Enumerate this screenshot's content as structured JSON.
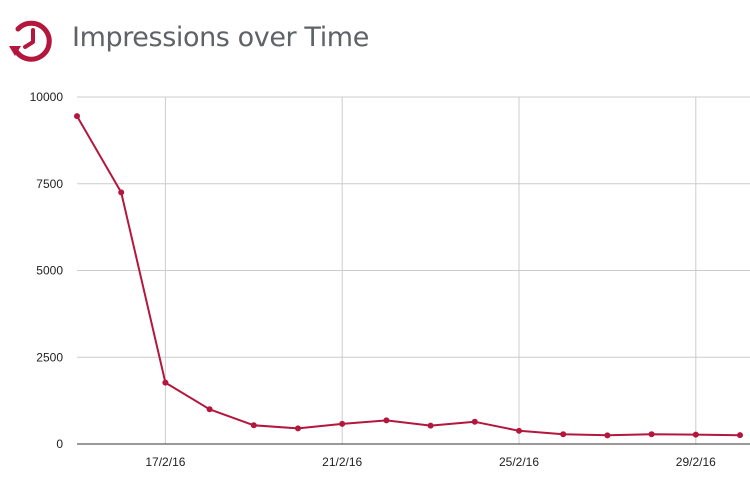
{
  "header": {
    "title": "Impressions over Time",
    "icon": "history-clock-icon",
    "accent_color": "#b3173d"
  },
  "chart_data": {
    "type": "line",
    "title": "Impressions over Time",
    "xlabel": "",
    "ylabel": "",
    "x": [
      "15/2/16",
      "16/2/16",
      "17/2/16",
      "18/2/16",
      "19/2/16",
      "20/2/16",
      "21/2/16",
      "22/2/16",
      "23/2/16",
      "24/2/16",
      "25/2/16",
      "26/2/16",
      "27/2/16",
      "28/2/16",
      "29/2/16",
      "1/3/16"
    ],
    "x_tick_labels": [
      "17/2/16",
      "21/2/16",
      "25/2/16",
      "29/2/16"
    ],
    "series": [
      {
        "values": [
          9450,
          7250,
          1770,
          1000,
          540,
          450,
          580,
          680,
          530,
          640,
          380,
          280,
          250,
          280,
          270,
          255
        ]
      }
    ],
    "y_ticks": [
      0,
      2500,
      5000,
      7500,
      10000
    ],
    "ylim": [
      0,
      10000
    ],
    "grid": true,
    "line_color": "#b3173d"
  }
}
